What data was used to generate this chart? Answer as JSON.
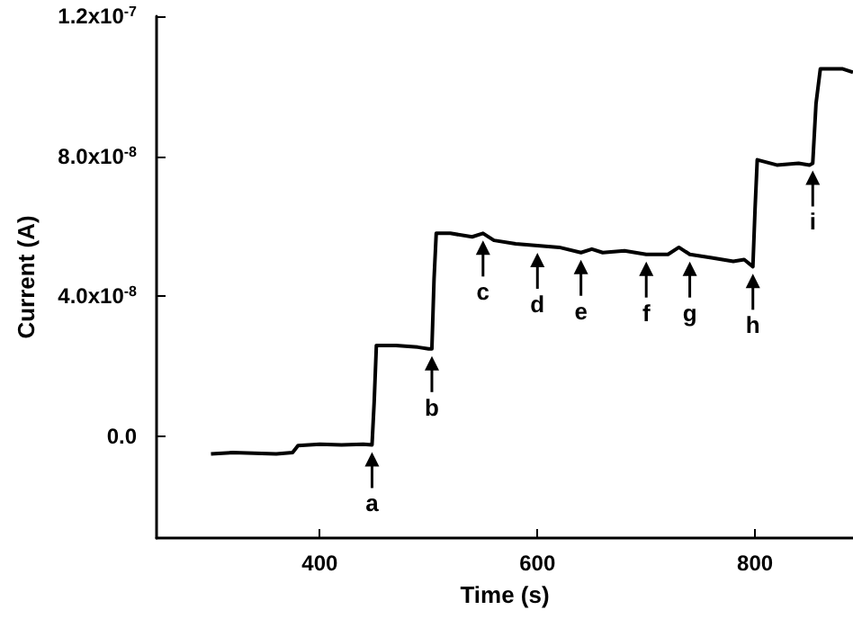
{
  "chart_data": {
    "type": "line",
    "xlabel": "Time (s)",
    "ylabel": "Current (A)",
    "x": [
      300,
      320,
      340,
      360,
      375,
      380,
      400,
      420,
      440,
      448,
      450,
      452,
      470,
      490,
      500,
      503,
      505,
      507,
      520,
      540,
      550,
      560,
      580,
      600,
      620,
      640,
      650,
      660,
      680,
      700,
      720,
      730,
      740,
      760,
      780,
      790,
      798,
      800,
      802,
      820,
      840,
      850,
      853,
      856,
      860,
      880,
      890
    ],
    "series": [
      {
        "color": "#000000",
        "values": [
          -5e-09,
          -4.6e-09,
          -4.8e-09,
          -5e-09,
          -4.6e-09,
          -2.6e-09,
          -2.2e-09,
          -2.4e-09,
          -2.2e-09,
          -2.4e-09,
          1e-08,
          2.6e-08,
          2.6e-08,
          2.55e-08,
          2.5e-08,
          2.5e-08,
          4.5e-08,
          5.8e-08,
          5.8e-08,
          5.7e-08,
          5.8e-08,
          5.6e-08,
          5.5e-08,
          5.45e-08,
          5.4e-08,
          5.25e-08,
          5.35e-08,
          5.25e-08,
          5.3e-08,
          5.2e-08,
          5.2e-08,
          5.4e-08,
          5.2e-08,
          5.1e-08,
          5e-08,
          5.05e-08,
          4.85e-08,
          6.5e-08,
          7.9e-08,
          7.75e-08,
          7.8e-08,
          7.75e-08,
          7.8e-08,
          9.5e-08,
          1.05e-07,
          1.05e-07,
          1.04e-07
        ]
      }
    ],
    "xlim": [
      250,
      890
    ],
    "xticks": [
      400,
      600,
      800
    ],
    "ylim": [
      -2.9e-08,
      1.2e-07
    ],
    "yticks": [
      {
        "value": 0,
        "label": "0.0"
      },
      {
        "value": 4e-08,
        "label": "4.0x10$^{-8}$"
      },
      {
        "value": 8e-08,
        "label": "8.0x10$^{-8}$"
      },
      {
        "value": 1.2e-07,
        "label": "1.2x10$^{-7}$"
      }
    ],
    "grid": false,
    "marker": "none",
    "line_style": "solid",
    "annotations": [
      {
        "text": "a",
        "x": 448,
        "y": -2.4e-09
      },
      {
        "text": "b",
        "x": 503,
        "y": 2.5e-08
      },
      {
        "text": "c",
        "x": 550,
        "y": 5.8e-08
      },
      {
        "text": "d",
        "x": 600,
        "y": 5.45e-08
      },
      {
        "text": "e",
        "x": 640,
        "y": 5.25e-08
      },
      {
        "text": "f",
        "x": 700,
        "y": 5.2e-08
      },
      {
        "text": "g",
        "x": 740,
        "y": 5.2e-08
      },
      {
        "text": "h",
        "x": 798,
        "y": 4.85e-08
      },
      {
        "text": "i",
        "x": 853,
        "y": 7.8e-08
      }
    ]
  }
}
